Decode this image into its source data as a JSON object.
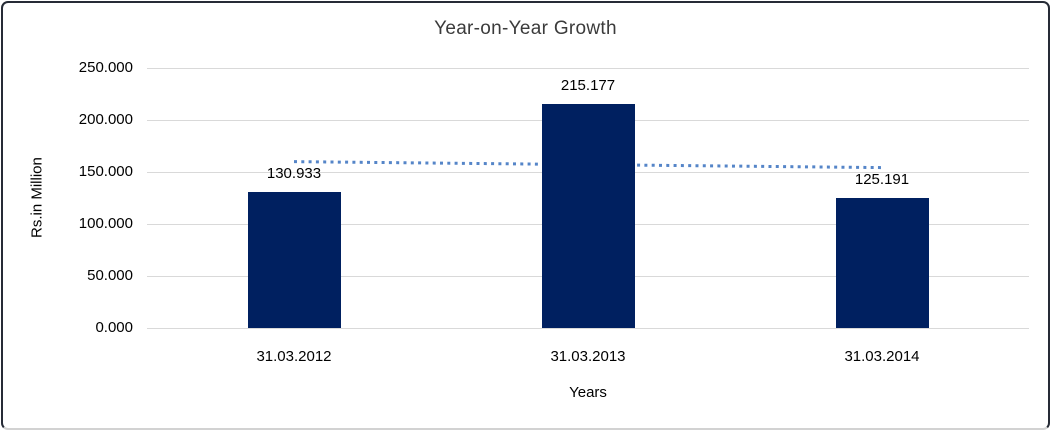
{
  "chart_data": {
    "type": "bar",
    "title": "Year-on-Year Growth",
    "xlabel": "Years",
    "ylabel": "Rs.in Million",
    "categories": [
      "31.03.2012",
      "31.03.2013",
      "31.03.2014"
    ],
    "values": [
      130.933,
      215.177,
      125.191
    ],
    "data_labels": [
      "130.933",
      "215.177",
      "125.191"
    ],
    "ylim": [
      0,
      250
    ],
    "ytick_step": 50,
    "ytick_labels": [
      "0.000",
      "50.000",
      "100.000",
      "150.000",
      "200.000",
      "250.000"
    ],
    "grid": true,
    "legend": false,
    "colors": {
      "bar": "#002060",
      "trendline": "#5585c8",
      "gridline": "#d9d9d9",
      "text": "#000000",
      "title_text": "#3b3b3b",
      "frame_border": "#262b36"
    },
    "trendline": {
      "type": "linear",
      "style": "dotted",
      "start_value": 159.97,
      "end_value": 154.23
    }
  }
}
